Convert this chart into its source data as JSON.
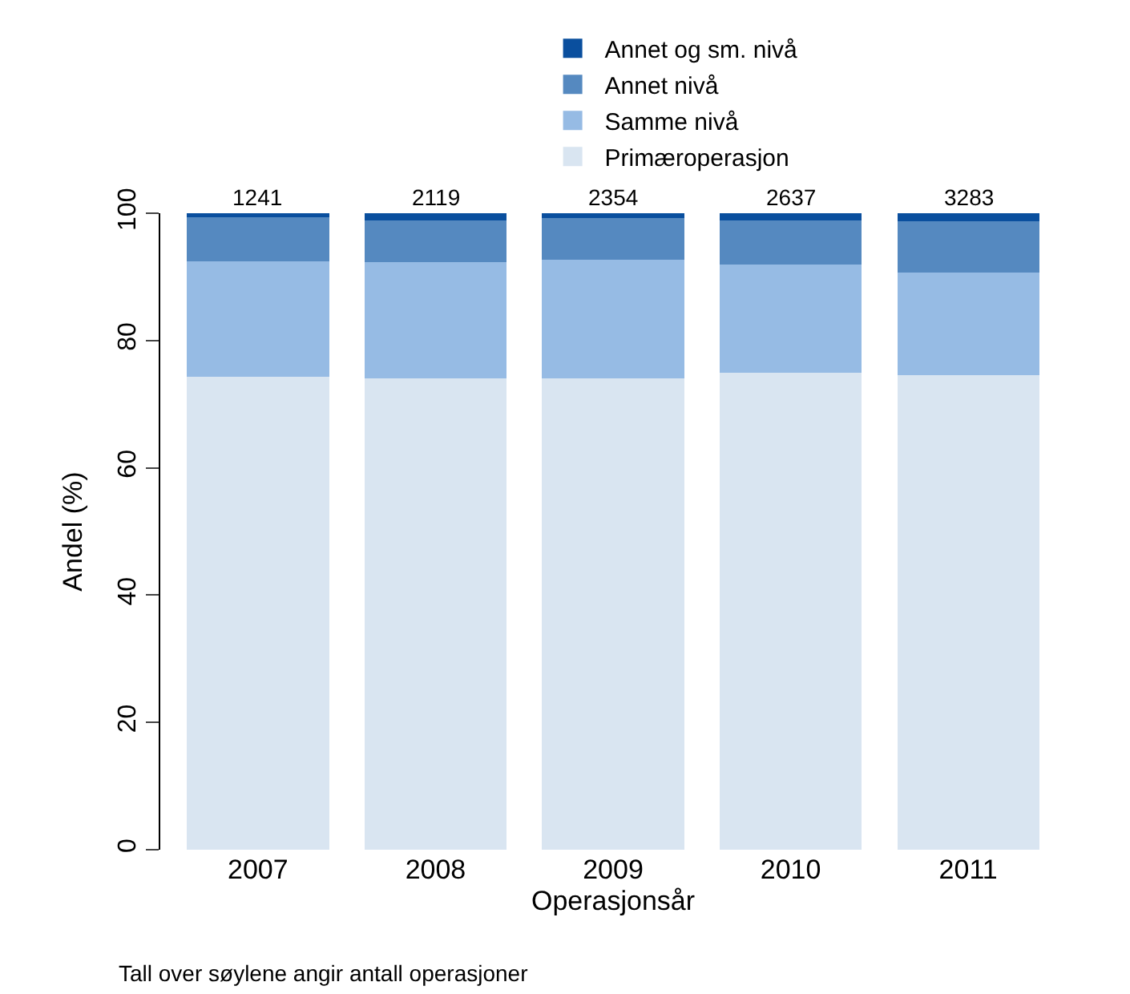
{
  "chart_data": {
    "type": "bar",
    "stacked": true,
    "xlabel": "Operasjonsår",
    "ylabel": "Andel (%)",
    "categories": [
      "2007",
      "2008",
      "2009",
      "2010",
      "2011"
    ],
    "series": [
      {
        "name": "Primæroperasjon",
        "color": "#d9e5f1",
        "values": [
          74.3,
          74.1,
          74.1,
          75.0,
          74.6
        ]
      },
      {
        "name": "Samme nivå",
        "color": "#96bbe4",
        "values": [
          18.2,
          18.2,
          18.6,
          16.9,
          16.1
        ]
      },
      {
        "name": "Annet nivå",
        "color": "#5589c0",
        "values": [
          6.9,
          6.6,
          6.5,
          7.0,
          8.0
        ]
      },
      {
        "name": "Annet og sm. nivå",
        "color": "#0a4f9e",
        "values": [
          0.6,
          1.1,
          0.8,
          1.1,
          1.3
        ]
      }
    ],
    "ylim": [
      0,
      100
    ],
    "yticks": [
      0,
      20,
      40,
      60,
      80,
      100
    ],
    "legend": "top",
    "annotations": [
      {
        "text": "1241",
        "x": "2007",
        "y": 100
      },
      {
        "text": "2119",
        "x": "2008",
        "y": 100
      },
      {
        "text": "2354",
        "x": "2009",
        "y": 100
      },
      {
        "text": "2637",
        "x": "2010",
        "y": 100
      },
      {
        "text": "3283",
        "x": "2011",
        "y": 100
      },
      "Tall over søylene angir antall operasjoner"
    ]
  }
}
